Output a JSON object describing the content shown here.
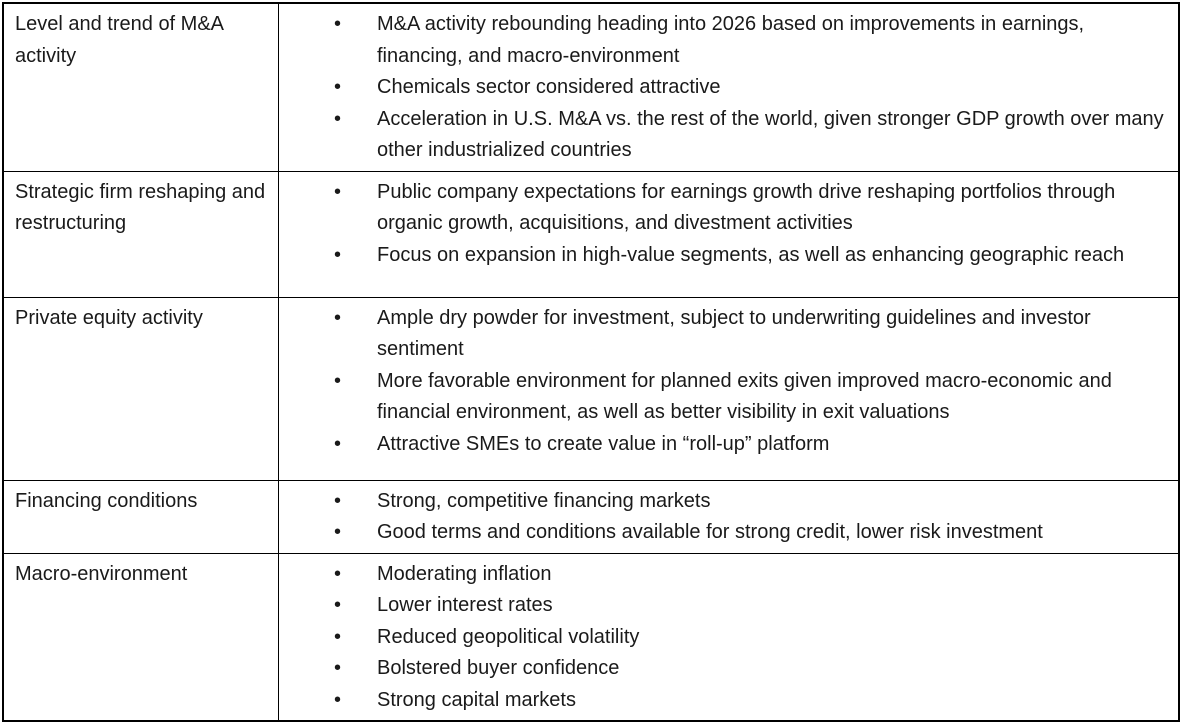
{
  "table": {
    "bullet_glyph": "•",
    "colors": {
      "text": "#1a1a1a",
      "border": "#000000",
      "background": "#ffffff"
    },
    "rows": [
      {
        "label": "Level and trend of M&A activity",
        "bullets": [
          "M&A activity rebounding heading into 2026 based on improvements in earnings, financing, and macro-environment",
          "Chemicals sector considered attractive",
          "Acceleration in U.S. M&A vs. the rest of the world, given stronger GDP growth over many other industrialized countries"
        ]
      },
      {
        "label": "Strategic firm reshaping and restructuring",
        "bullets": [
          "Public company expectations for earnings growth drive reshaping portfolios through organic growth, acquisitions, and divestment activities",
          "Focus on expansion in high-value segments, as well as enhancing geographic reach"
        ]
      },
      {
        "label": "Private equity activity",
        "bullets": [
          "Ample dry powder for investment, subject to underwriting guidelines and investor sentiment",
          "More favorable environment for planned exits given improved macro-economic and financial environment, as well as better visibility in exit valuations",
          "Attractive SMEs to create value in “roll-up” platform"
        ]
      },
      {
        "label": "Financing conditions",
        "bullets": [
          "Strong, competitive financing markets",
          "Good terms and conditions available for strong credit, lower risk investment"
        ]
      },
      {
        "label": "Macro-environment",
        "bullets": [
          "Moderating inflation",
          "Lower interest rates",
          "Reduced geopolitical volatility",
          "Bolstered buyer confidence",
          "Strong capital markets"
        ]
      }
    ]
  }
}
